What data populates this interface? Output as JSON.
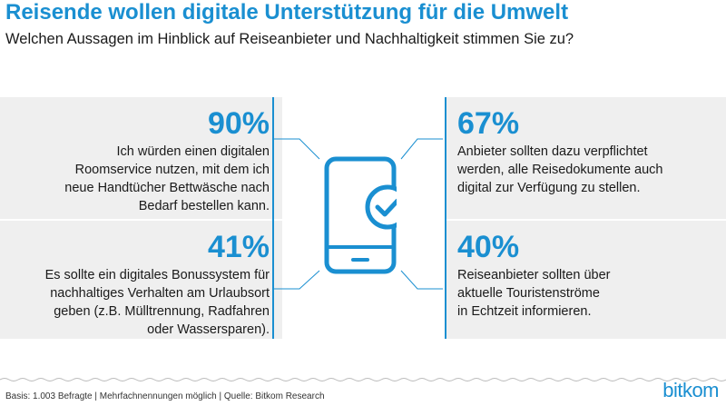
{
  "header": {
    "title": "Reisende wollen digitale Unterstützung für die Umwelt",
    "subtitle": "Welchen Aussagen im Hinblick auf Reiseanbieter und Nachhaltigkeit stimmen Sie zu?"
  },
  "cards": {
    "top_left": {
      "value": "90%",
      "lines": [
        "Ich würden einen digitalen",
        "Roomservice nutzen, mit dem ich",
        "neue Handtücher Bettwäsche nach",
        "Bedarf bestellen kann."
      ]
    },
    "bottom_left": {
      "value": "41%",
      "lines": [
        "Es sollte ein digitales Bonussystem für",
        "nachhaltiges Verhalten am Urlaubsort",
        "geben (z.B. Mülltrennung, Radfahren",
        "oder Wassersparen)."
      ]
    },
    "top_right": {
      "value": "67%",
      "lines": [
        "Anbieter sollten dazu verpflichtet",
        "werden, alle Reisedokumente auch",
        "digital zur Verfügung zu stellen."
      ]
    },
    "bottom_right": {
      "value": "40%",
      "lines": [
        "Reiseanbieter sollten über",
        "aktuelle Touristenströme",
        "in Echtzeit informieren."
      ]
    }
  },
  "icons": {
    "center": "smartphone-check-icon"
  },
  "footer": {
    "source": "Basis: 1.003 Befragte | Mehrfachnennungen möglich | Quelle: Bitkom Research",
    "logo": "bitkom"
  },
  "colors": {
    "accent": "#1a8fd1",
    "card_bg": "#efefef",
    "text": "#1a1a1a"
  }
}
